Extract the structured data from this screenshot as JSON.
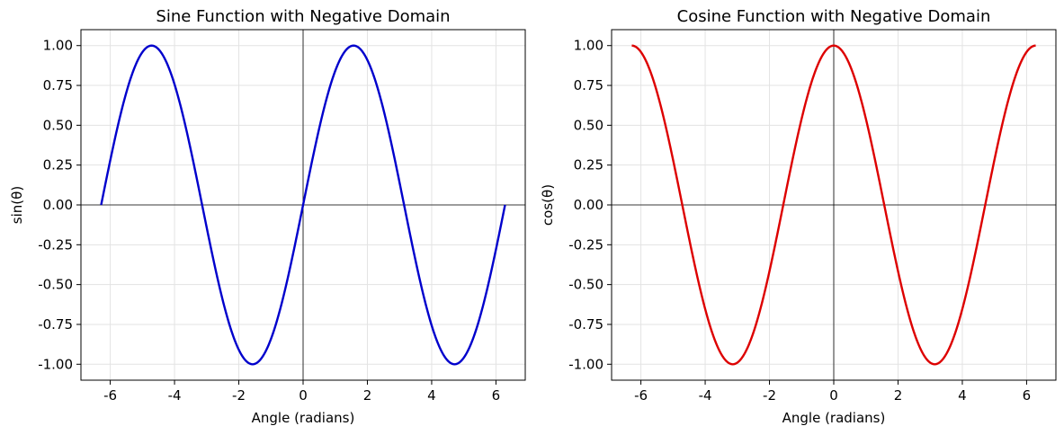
{
  "chart_data": [
    {
      "type": "line",
      "title": "Sine Function with Negative Domain",
      "xlabel": "Angle (radians)",
      "ylabel": "sin(θ)",
      "xlim": [
        -6.9115,
        6.9115
      ],
      "ylim": [
        -1.1,
        1.1
      ],
      "xticks": [
        -6,
        -4,
        -2,
        0,
        2,
        4,
        6
      ],
      "xtick_labels": [
        "-6",
        "-4",
        "-2",
        "0",
        "2",
        "4",
        "6"
      ],
      "yticks": [
        1.0,
        0.75,
        0.5,
        0.25,
        0.0,
        -0.25,
        -0.5,
        -0.75,
        -1.0
      ],
      "ytick_labels": [
        "1.00",
        "0.75",
        "0.50",
        "0.25",
        "0.00",
        "-0.25",
        "-0.50",
        "-0.75",
        "-1.00"
      ],
      "grid": true,
      "reference_lines": {
        "x": 0,
        "y": 0
      },
      "series": [
        {
          "function": "sin",
          "color": "#0000cc",
          "x": [
            -6.2832,
            -5.7596,
            -5.236,
            -4.7124,
            -4.1888,
            -3.6652,
            -3.1416,
            -2.618,
            -2.0944,
            -1.5708,
            -1.0472,
            -0.5236,
            0,
            0.5236,
            1.0472,
            1.5708,
            2.0944,
            2.618,
            3.1416,
            3.6652,
            4.1888,
            4.7124,
            5.236,
            5.7596,
            6.2832
          ],
          "y": [
            0,
            0.5,
            0.866,
            1,
            0.866,
            0.5,
            0,
            -0.5,
            -0.866,
            -1,
            -0.866,
            -0.5,
            0,
            0.5,
            0.866,
            1,
            0.866,
            0.5,
            0,
            -0.5,
            -0.866,
            -1,
            -0.866,
            -0.5,
            0
          ]
        }
      ]
    },
    {
      "type": "line",
      "title": "Cosine Function with Negative Domain",
      "xlabel": "Angle (radians)",
      "ylabel": "cos(θ)",
      "xlim": [
        -6.9115,
        6.9115
      ],
      "ylim": [
        -1.1,
        1.1
      ],
      "xticks": [
        -6,
        -4,
        -2,
        0,
        2,
        4,
        6
      ],
      "xtick_labels": [
        "-6",
        "-4",
        "-2",
        "0",
        "2",
        "4",
        "6"
      ],
      "yticks": [
        1.0,
        0.75,
        0.5,
        0.25,
        0.0,
        -0.25,
        -0.5,
        -0.75,
        -1.0
      ],
      "ytick_labels": [
        "1.00",
        "0.75",
        "0.50",
        "0.25",
        "0.00",
        "-0.25",
        "-0.50",
        "-0.75",
        "-1.00"
      ],
      "grid": true,
      "reference_lines": {
        "x": 0,
        "y": 0
      },
      "series": [
        {
          "function": "cos",
          "color": "#dd0000",
          "x": [
            -6.2832,
            -5.7596,
            -5.236,
            -4.7124,
            -4.1888,
            -3.6652,
            -3.1416,
            -2.618,
            -2.0944,
            -1.5708,
            -1.0472,
            -0.5236,
            0,
            0.5236,
            1.0472,
            1.5708,
            2.0944,
            2.618,
            3.1416,
            3.6652,
            4.1888,
            4.7124,
            5.236,
            5.7596,
            6.2832
          ],
          "y": [
            1,
            0.866,
            0.5,
            0,
            -0.5,
            -0.866,
            -1,
            -0.866,
            -0.5,
            0,
            0.5,
            0.866,
            1,
            0.866,
            0.5,
            0,
            -0.5,
            -0.866,
            -1,
            -0.866,
            -0.5,
            0,
            0.5,
            0.866,
            1
          ]
        }
      ]
    }
  ]
}
